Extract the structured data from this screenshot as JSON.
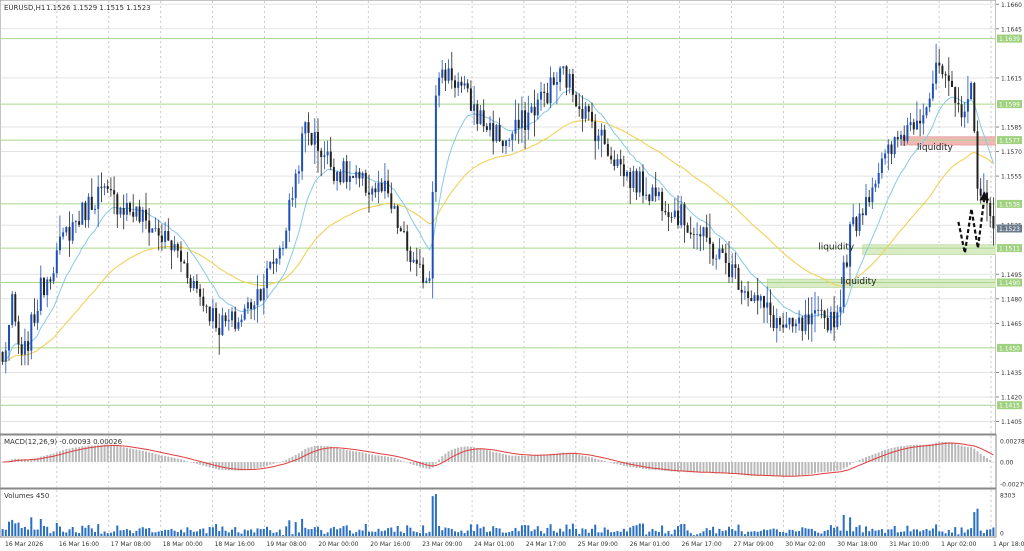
{
  "chart_data": {
    "type": "candlestick",
    "symbol": "EURUSD,H1",
    "ohlc_label": "1.1526 1.1529 1.1515 1.1523",
    "price_axis_ticks": [
      "1.1660",
      "1.1645",
      "1.1615",
      "1.1585",
      "1.1570",
      "1.1555",
      "1.1525",
      "1.1495",
      "1.1480",
      "1.1465",
      "1.1435",
      "1.1420",
      "1.1405"
    ],
    "ylim": [
      1.1398,
      1.1662
    ],
    "levels": [
      {
        "price": 1.1639,
        "label": "1.1639"
      },
      {
        "price": 1.1599,
        "label": "1.1599"
      },
      {
        "price": 1.1577,
        "label": "1.1577"
      },
      {
        "price": 1.1538,
        "label": "1.1538"
      },
      {
        "price": 1.1511,
        "label": "1.1511"
      },
      {
        "price": 1.149,
        "label": "1.1490"
      },
      {
        "price": 1.145,
        "label": "1.1450"
      },
      {
        "price": 1.1415,
        "label": "1.1415"
      }
    ],
    "current_price": {
      "price": 1.1523,
      "label": "1.1523"
    },
    "time_labels": [
      "16 Mar 2026",
      "16 Mar 16:00",
      "17 Mar 08:00",
      "18 Mar 00:00",
      "18 Mar 16:00",
      "19 Mar 08:00",
      "20 Mar 00:00",
      "20 Mar 16:00",
      "23 Mar 09:00",
      "24 Mar 01:00",
      "24 Mar 17:00",
      "25 Mar 09:00",
      "26 Mar 01:00",
      "26 Mar 17:00",
      "27 Mar 09:00",
      "30 Mar 02:00",
      "30 Mar 18:00",
      "31 Mar 10:00",
      "1 Apr 02:00",
      "1 Apr 18:00"
    ],
    "zones": [
      {
        "label": "liquidity",
        "kind": "resistance",
        "color": "#f2b8b8",
        "price_top": 1.1579,
        "price_bottom": 1.1574,
        "text_price": 1.1571
      },
      {
        "label": "liquidity",
        "kind": "support",
        "color": "#d9ecc5",
        "price_top": 1.1513,
        "price_bottom": 1.1507,
        "text_price": 1.151
      },
      {
        "label": "liquidity",
        "kind": "support",
        "color": "#d9ecc5",
        "price_top": 1.1492,
        "price_bottom": 1.1487,
        "text_price": 1.1489
      }
    ],
    "forecast_path": [
      [
        0,
        1.1527
      ],
      [
        1,
        1.1508
      ],
      [
        2,
        1.1535
      ],
      [
        3,
        1.1511
      ],
      [
        4,
        1.1542
      ]
    ],
    "anchors": [
      {
        "i": 0,
        "p": 1.144
      },
      {
        "i": 3,
        "p": 1.1475
      },
      {
        "i": 6,
        "p": 1.144
      },
      {
        "i": 12,
        "p": 1.1485
      },
      {
        "i": 20,
        "p": 1.152
      },
      {
        "i": 30,
        "p": 1.1545
      },
      {
        "i": 40,
        "p": 1.1535
      },
      {
        "i": 48,
        "p": 1.1522
      },
      {
        "i": 55,
        "p": 1.1508
      },
      {
        "i": 62,
        "p": 1.1482
      },
      {
        "i": 68,
        "p": 1.1464
      },
      {
        "i": 74,
        "p": 1.1466
      },
      {
        "i": 82,
        "p": 1.149
      },
      {
        "i": 88,
        "p": 1.1515
      },
      {
        "i": 95,
        "p": 1.1585
      },
      {
        "i": 104,
        "p": 1.156
      },
      {
        "i": 112,
        "p": 1.155
      },
      {
        "i": 120,
        "p": 1.1545
      },
      {
        "i": 130,
        "p": 1.1495
      },
      {
        "i": 134,
        "p": 1.1495
      },
      {
        "i": 136,
        "p": 1.161
      },
      {
        "i": 140,
        "p": 1.162
      },
      {
        "i": 150,
        "p": 1.159
      },
      {
        "i": 158,
        "p": 1.1575
      },
      {
        "i": 168,
        "p": 1.16
      },
      {
        "i": 176,
        "p": 1.1618
      },
      {
        "i": 184,
        "p": 1.159
      },
      {
        "i": 196,
        "p": 1.1555
      },
      {
        "i": 208,
        "p": 1.154
      },
      {
        "i": 218,
        "p": 1.152
      },
      {
        "i": 228,
        "p": 1.15
      },
      {
        "i": 236,
        "p": 1.148
      },
      {
        "i": 246,
        "p": 1.146
      },
      {
        "i": 254,
        "p": 1.1465
      },
      {
        "i": 262,
        "p": 1.147
      },
      {
        "i": 266,
        "p": 1.152
      },
      {
        "i": 274,
        "p": 1.1555
      },
      {
        "i": 282,
        "p": 1.158
      },
      {
        "i": 290,
        "p": 1.16
      },
      {
        "i": 294,
        "p": 1.1622
      },
      {
        "i": 296,
        "p": 1.161
      },
      {
        "i": 300,
        "p": 1.1595
      },
      {
        "i": 304,
        "p": 1.1605
      },
      {
        "i": 306,
        "p": 1.1555
      },
      {
        "i": 310,
        "p": 1.1527
      }
    ],
    "colors": {
      "bull": "#1f4fb8",
      "bear": "#222222",
      "ma_fast": "#87c9ea",
      "ma_slow": "#f2d15a",
      "level": "#a8d68a",
      "macd_hist": "#b9b9b9",
      "macd_signal": "#e23b3b",
      "volume": "#2a6fc2"
    }
  },
  "macd": {
    "label": "MACD(12,26,9) -0.00093 0.00026",
    "ticks": [
      "0.00278",
      "0.00",
      "-0.00279"
    ]
  },
  "volumes": {
    "label": "Volumes 450",
    "ticks": [
      "8303",
      "0"
    ]
  }
}
